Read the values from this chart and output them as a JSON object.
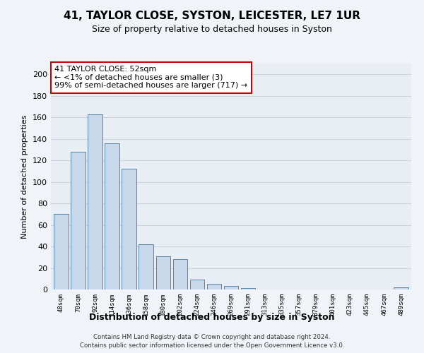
{
  "title": "41, TAYLOR CLOSE, SYSTON, LEICESTER, LE7 1UR",
  "subtitle": "Size of property relative to detached houses in Syston",
  "xlabel": "Distribution of detached houses by size in Syston",
  "ylabel": "Number of detached properties",
  "bar_labels": [
    "48sqm",
    "70sqm",
    "92sqm",
    "114sqm",
    "136sqm",
    "158sqm",
    "180sqm",
    "202sqm",
    "224sqm",
    "246sqm",
    "269sqm",
    "291sqm",
    "313sqm",
    "335sqm",
    "357sqm",
    "379sqm",
    "401sqm",
    "423sqm",
    "445sqm",
    "467sqm",
    "489sqm"
  ],
  "bar_values": [
    70,
    128,
    163,
    136,
    112,
    42,
    31,
    28,
    9,
    5,
    3,
    1,
    0,
    0,
    0,
    0,
    0,
    0,
    0,
    0,
    2
  ],
  "bar_color": "#c8d8ea",
  "bar_edge_color": "#5588aa",
  "annotation_box_text": "41 TAYLOR CLOSE: 52sqm\n← <1% of detached houses are smaller (3)\n99% of semi-detached houses are larger (717) →",
  "annotation_box_edge_color": "#cc0000",
  "ylim": [
    0,
    210
  ],
  "yticks": [
    0,
    20,
    40,
    60,
    80,
    100,
    120,
    140,
    160,
    180,
    200
  ],
  "background_color": "#f0f4f8",
  "plot_bg_color": "#e8eef4",
  "grid_color": "#c8d4e0",
  "footer_line1": "Contains HM Land Registry data © Crown copyright and database right 2024.",
  "footer_line2": "Contains public sector information licensed under the Open Government Licence v3.0."
}
